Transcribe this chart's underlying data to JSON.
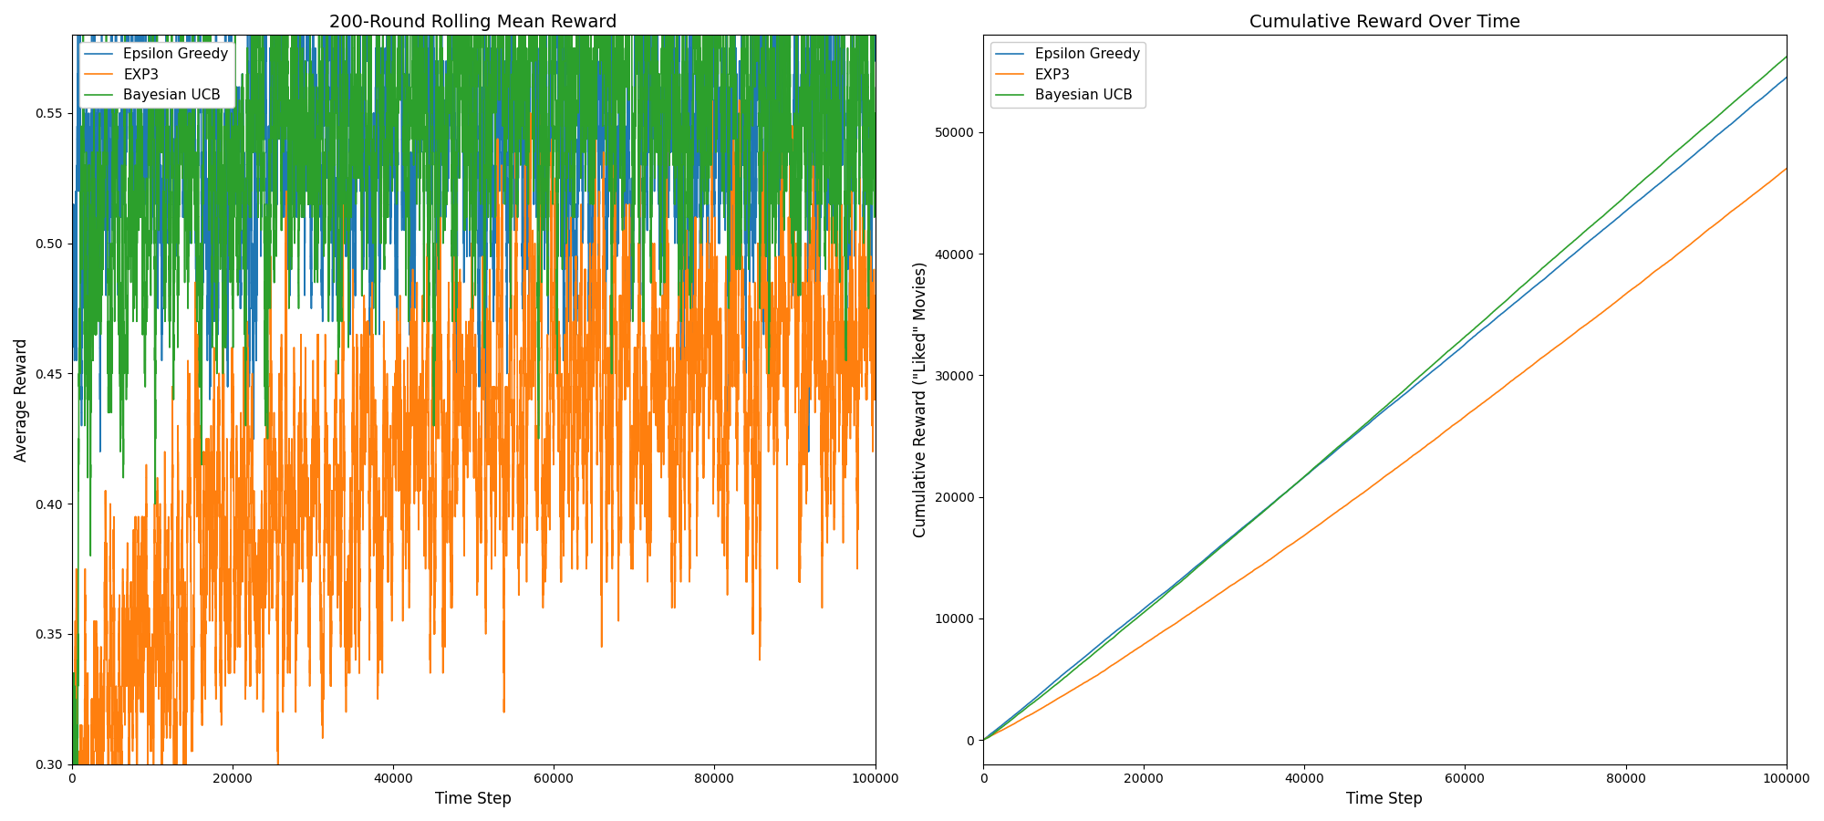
{
  "title_left": "200-Round Rolling Mean Reward",
  "title_right": "Cumulative Reward Over Time",
  "xlabel": "Time Step",
  "ylabel_left": "Average Reward",
  "ylabel_right": "Cumulative Reward (\"Liked\" Movies)",
  "n_steps": 100000,
  "rolling_window": 200,
  "colors": {
    "epsilon_greedy": "#1f77b4",
    "exp3": "#ff7f0e",
    "bayesian_ucb": "#2ca02c"
  },
  "legend_labels": [
    "Epsilon Greedy",
    "EXP3",
    "Bayesian UCB"
  ],
  "left_ylim": [
    0.3,
    0.58
  ],
  "right_ylim": [
    -2000,
    58000
  ],
  "right_yticks": [
    0,
    10000,
    20000,
    30000,
    40000,
    50000
  ],
  "figsize": [
    20.0,
    9.0
  ],
  "dpi": 100
}
